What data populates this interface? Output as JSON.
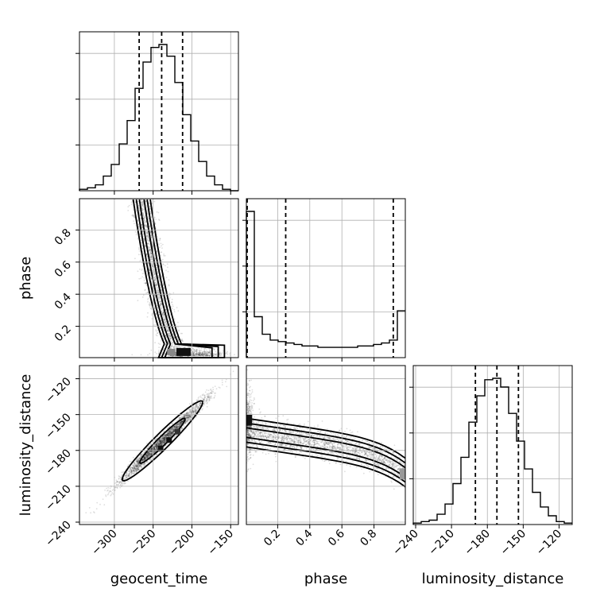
{
  "chart_data": {
    "type": "corner",
    "parameters": [
      "geocent_time",
      "phase",
      "luminosity_distance"
    ],
    "axis_labels": {
      "geocent_time": "geocent_time",
      "phase": "phase",
      "luminosity_distance": "luminosity_distance"
    },
    "ranges": {
      "geocent_time": [
        -345,
        -140
      ],
      "phase": [
        0.005,
        0.995
      ],
      "luminosity_distance": [
        -242,
        -109
      ]
    },
    "ticks": {
      "geocent_time": [
        -300,
        -250,
        -200,
        -150
      ],
      "phase": [
        0.2,
        0.4,
        0.6,
        0.8
      ],
      "luminosity_distance": [
        -240,
        -210,
        -180,
        -150,
        -120
      ]
    },
    "quantiles": {
      "geocent_time": [
        -268,
        -239,
        -212
      ],
      "phase": [
        0.01,
        0.25,
        0.92
      ],
      "luminosity_distance": [
        -190,
        -172,
        -154
      ]
    },
    "histograms": {
      "geocent_time": {
        "edges": [
          -345,
          -334.75,
          -324.5,
          -314.25,
          -304,
          -293.75,
          -283.5,
          -273.25,
          -263,
          -252.75,
          -242.5,
          -232.25,
          -222,
          -211.75,
          -201.5,
          -191.25,
          -181,
          -170.75,
          -160.5,
          -150.25,
          -140
        ],
        "counts": [
          1,
          2,
          4,
          10,
          18,
          32,
          48,
          70,
          88,
          98,
          100,
          92,
          74,
          52,
          34,
          20,
          10,
          4,
          1,
          0
        ]
      },
      "phase": {
        "edges": [
          0.005,
          0.0545,
          0.104,
          0.1535,
          0.203,
          0.2525,
          0.302,
          0.3515,
          0.401,
          0.4505,
          0.5,
          0.5495,
          0.599,
          0.6485,
          0.698,
          0.7475,
          0.797,
          0.8465,
          0.896,
          0.9455,
          0.995
        ],
        "counts": [
          100,
          28,
          16,
          12,
          11,
          10,
          9,
          8,
          8,
          7,
          7,
          7,
          7,
          7,
          8,
          8,
          9,
          10,
          12,
          32
        ]
      },
      "luminosity_distance": {
        "edges": [
          -242,
          -235.35,
          -228.7,
          -222.05,
          -215.4,
          -208.75,
          -202.1,
          -195.45,
          -188.8,
          -182.15,
          -175.5,
          -168.85,
          -162.2,
          -155.55,
          -148.9,
          -142.25,
          -135.6,
          -128.95,
          -122.3,
          -115.65,
          -109
        ],
        "counts": [
          1,
          2,
          3,
          7,
          14,
          28,
          46,
          70,
          88,
          99,
          100,
          94,
          76,
          57,
          38,
          22,
          12,
          6,
          2,
          1
        ]
      }
    },
    "pairs": [
      {
        "x": "geocent_time",
        "y": "phase",
        "shape": "L-shaped, high density near phase 0.03 at geocent_time -210"
      },
      {
        "x": "geocent_time",
        "y": "luminosity_distance",
        "shape": "linear positive correlation"
      },
      {
        "x": "phase",
        "y": "luminosity_distance",
        "shape": "decreasing band, high density near phase 0.02"
      }
    ],
    "grid": true,
    "histogram_style": "step",
    "quantile_style": "dashed",
    "contour_levels": 3
  }
}
